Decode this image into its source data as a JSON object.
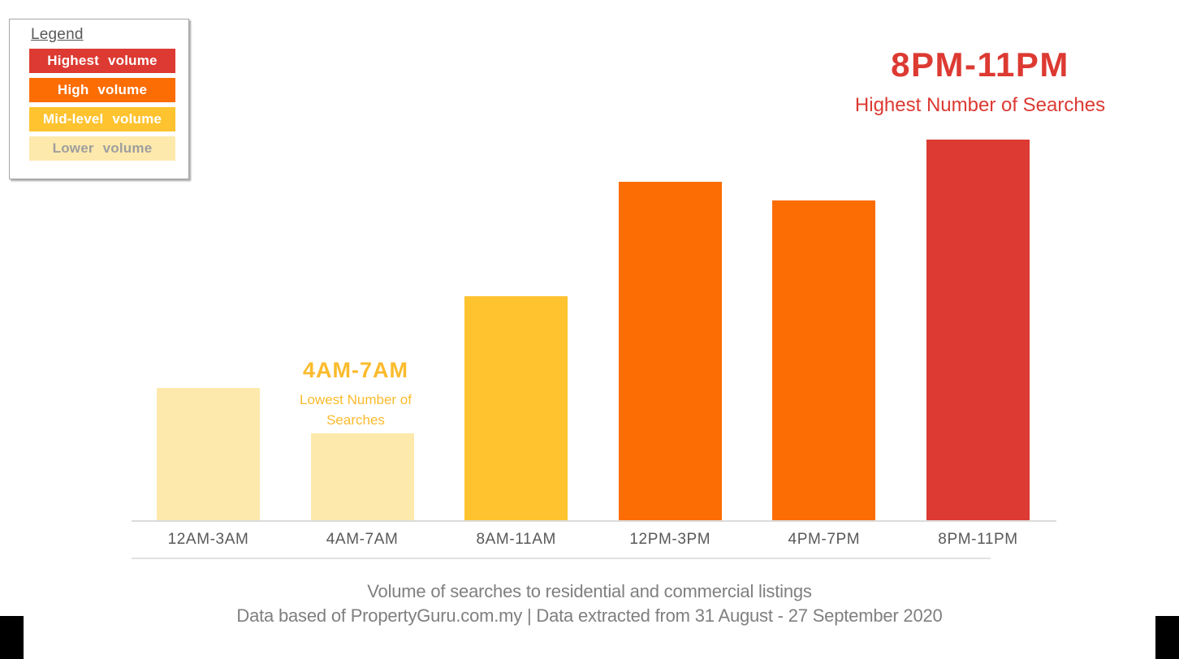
{
  "colors": {
    "highest": "#DC3A32",
    "high": "#FC6D04",
    "mid": "#FEC32F",
    "lower": "#FEE9AC",
    "axis_label": "#595959",
    "caption": "#7F7F7F",
    "frame_corners": "#000000"
  },
  "legend": {
    "title": "Legend",
    "items": [
      {
        "label": "Highest volume",
        "color": "#DC3A32",
        "text_color": "#FFFFFF"
      },
      {
        "label": "High volume",
        "color": "#FC6D04",
        "text_color": "#FFFFFF"
      },
      {
        "label": "Mid-level volume",
        "color": "#FEC32F",
        "text_color": "#FFFFFF"
      },
      {
        "label": "Lower volume",
        "color": "#FEE9AC",
        "text_color": "#9E9E9E"
      }
    ]
  },
  "annotations": {
    "highest": {
      "title": "8PM-11PM",
      "subtitle": "Highest Number of Searches",
      "color": "#DC3A32"
    },
    "lowest": {
      "title": "4AM-7AM",
      "subtitle_line1": "Lowest Number of",
      "subtitle_line2": "Searches",
      "color": "#FBBB2C"
    }
  },
  "chart_data": {
    "type": "bar",
    "categories": [
      "12AM-3AM",
      "4AM-7AM",
      "8AM-11AM",
      "12PM-3PM",
      "4PM-7PM",
      "8PM-11PM"
    ],
    "values": [
      35,
      23,
      59,
      89,
      84,
      100
    ],
    "value_note": "relative search volume, % of maximum (no y-axis shown; estimated from bar heights)",
    "colors": [
      "#FEE9AC",
      "#FEE9AC",
      "#FEC32F",
      "#FC6D04",
      "#FC6D04",
      "#DC3A32"
    ],
    "volume_levels": [
      "Lower volume",
      "Lower volume",
      "Mid-level volume",
      "High volume",
      "High volume",
      "Highest volume"
    ],
    "title": "Volume of searches to residential and commercial listings",
    "xlabel": "",
    "ylabel": "",
    "ylim": [
      0,
      100
    ],
    "grid": false,
    "legend_position": "top-left"
  },
  "caption": {
    "line1": "Volume of searches to residential and commercial listings",
    "line2": "Data based of PropertyGuru.com.my | Data extracted from 31 August - 27 September 2020"
  }
}
